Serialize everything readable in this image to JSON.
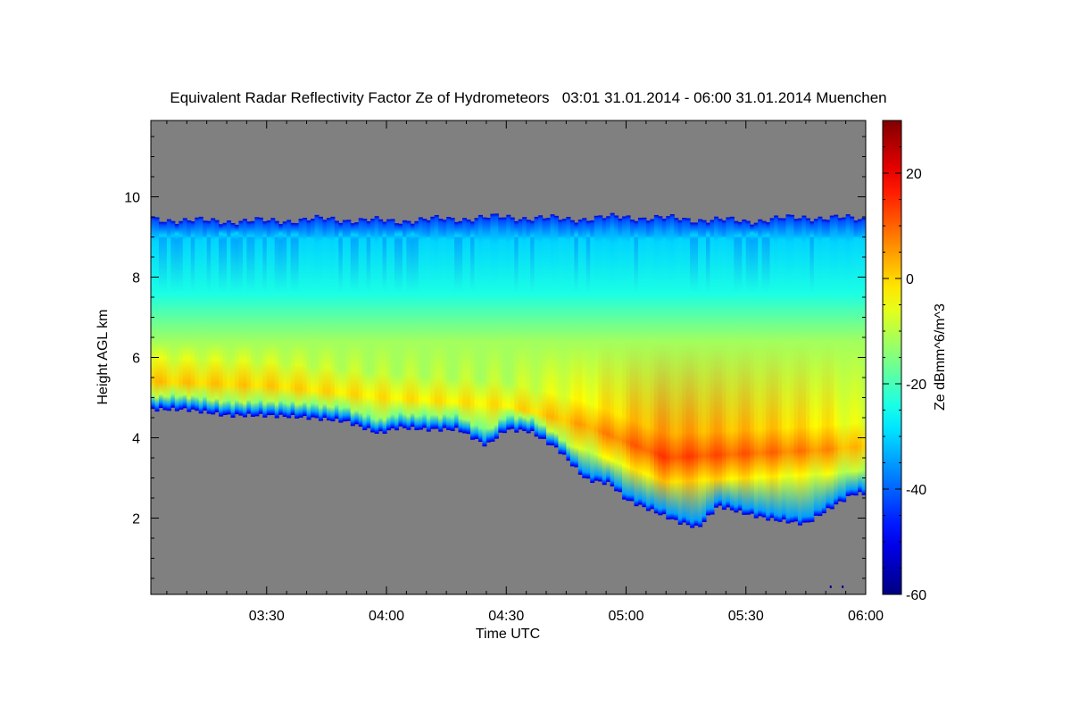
{
  "chart_data": {
    "type": "heatmap",
    "title": "Equivalent Radar Reflectivity Factor Ze of Hydrometeors   03:01 31.01.2014 - 06:00 31.01.2014 Muenchen",
    "xlabel": "Time UTC",
    "ylabel": "Height AGL km",
    "colorbar_label": "Ze dBmm^6/m^3",
    "x_range_minutes": [
      181,
      360
    ],
    "xlim_labels": [
      "03:01",
      "06:00"
    ],
    "ylim": [
      0.1,
      11.9
    ],
    "clim": [
      -60,
      30
    ],
    "background_color": "#808080",
    "colormap": "jet",
    "x_ticks": [
      {
        "minute": 210,
        "label": "03:30"
      },
      {
        "minute": 240,
        "label": "04:00"
      },
      {
        "minute": 270,
        "label": "04:30"
      },
      {
        "minute": 300,
        "label": "05:00"
      },
      {
        "minute": 330,
        "label": "05:30"
      },
      {
        "minute": 360,
        "label": "06:00"
      }
    ],
    "y_ticks": [
      {
        "value": 2,
        "label": "2"
      },
      {
        "value": 4,
        "label": "4"
      },
      {
        "value": 6,
        "label": "6"
      },
      {
        "value": 8,
        "label": "8"
      },
      {
        "value": 10,
        "label": "10"
      }
    ],
    "colorbar_ticks": [
      {
        "value": 20,
        "label": "20"
      },
      {
        "value": 0,
        "label": "0"
      },
      {
        "value": -20,
        "label": "-20"
      },
      {
        "value": -40,
        "label": "-40"
      },
      {
        "value": -60,
        "label": "-60"
      }
    ],
    "cloud_top_km": {
      "minutes": [
        181,
        195,
        210,
        225,
        240,
        255,
        270,
        285,
        300,
        315,
        330,
        345,
        360
      ],
      "values": [
        9.45,
        9.4,
        9.4,
        9.45,
        9.4,
        9.45,
        9.5,
        9.45,
        9.5,
        9.45,
        9.4,
        9.5,
        9.45
      ]
    },
    "cloud_base_km": {
      "minutes": [
        181,
        190,
        200,
        210,
        220,
        230,
        238,
        243,
        250,
        258,
        265,
        270,
        276,
        283,
        290,
        296,
        300,
        306,
        313,
        318,
        323,
        330,
        337,
        345,
        352,
        357,
        360
      ],
      "values": [
        4.7,
        4.7,
        4.55,
        4.55,
        4.5,
        4.4,
        4.1,
        4.25,
        4.2,
        4.2,
        3.8,
        4.2,
        4.15,
        3.7,
        2.95,
        2.85,
        2.45,
        2.2,
        1.9,
        1.75,
        2.3,
        2.1,
        1.95,
        1.85,
        2.3,
        2.6,
        2.6
      ]
    },
    "peak_band": {
      "minutes": [
        181,
        210,
        240,
        270,
        290,
        310,
        330,
        350,
        360
      ],
      "center_km": [
        5.4,
        5.3,
        5.0,
        4.8,
        4.3,
        3.5,
        3.6,
        3.7,
        3.8
      ],
      "peak_dbz": [
        1,
        0,
        -2,
        -2,
        4,
        13,
        10,
        6,
        0
      ]
    },
    "noise_points": [
      {
        "minute": 351,
        "height_km": 0.3
      },
      {
        "minute": 354,
        "height_km": 0.3
      }
    ]
  }
}
